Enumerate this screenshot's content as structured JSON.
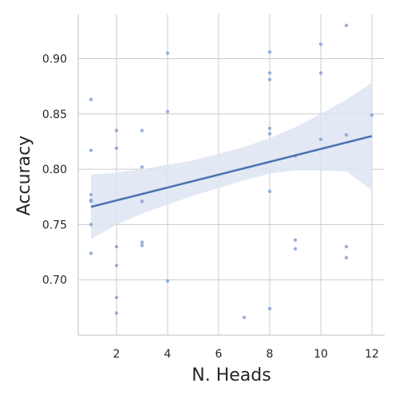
{
  "chart_data": {
    "type": "scatter",
    "title": "",
    "xlabel": "N. Heads",
    "ylabel": "Accuracy",
    "xlim": [
      0.5,
      12.5
    ],
    "ylim": [
      0.65,
      0.94
    ],
    "xticks": [
      2,
      4,
      6,
      8,
      10,
      12
    ],
    "yticks": [
      0.7,
      0.75,
      0.8,
      0.85,
      0.9
    ],
    "xtick_labels": [
      "2",
      "4",
      "6",
      "8",
      "10",
      "12"
    ],
    "ytick_labels": [
      "0.70",
      "0.75",
      "0.80",
      "0.85",
      "0.90"
    ],
    "grid": true,
    "colors": {
      "point": "#7f9fcf",
      "line": "#4c72b0",
      "band": "#dde4f2"
    },
    "points": [
      [
        1,
        0.863
      ],
      [
        1,
        0.817
      ],
      [
        1,
        0.777
      ],
      [
        1,
        0.772
      ],
      [
        1,
        0.771
      ],
      [
        1,
        0.75
      ],
      [
        1,
        0.724
      ],
      [
        2,
        0.835
      ],
      [
        2,
        0.819
      ],
      [
        2,
        0.73
      ],
      [
        2,
        0.713
      ],
      [
        2,
        0.684
      ],
      [
        2,
        0.67
      ],
      [
        3,
        0.835
      ],
      [
        3,
        0.802
      ],
      [
        3,
        0.771
      ],
      [
        3,
        0.734
      ],
      [
        3,
        0.731
      ],
      [
        4,
        0.905
      ],
      [
        4,
        0.852
      ],
      [
        4,
        0.699
      ],
      [
        7,
        0.666
      ],
      [
        8,
        0.906
      ],
      [
        8,
        0.887
      ],
      [
        8,
        0.881
      ],
      [
        8,
        0.837
      ],
      [
        8,
        0.832
      ],
      [
        8,
        0.78
      ],
      [
        8,
        0.674
      ],
      [
        9,
        0.812
      ],
      [
        9,
        0.736
      ],
      [
        9,
        0.728
      ],
      [
        10,
        0.913
      ],
      [
        10,
        0.887
      ],
      [
        10,
        0.827
      ],
      [
        11,
        0.93
      ],
      [
        11,
        0.831
      ],
      [
        11,
        0.73
      ],
      [
        11,
        0.72
      ],
      [
        12,
        0.849
      ]
    ],
    "regression": {
      "x": [
        1,
        12
      ],
      "y": [
        0.766,
        0.83
      ]
    },
    "ci_band": {
      "x": [
        1,
        2,
        3,
        4,
        5,
        6,
        7,
        8,
        9,
        10,
        11,
        12
      ],
      "upper": [
        0.795,
        0.797,
        0.8,
        0.804,
        0.808,
        0.814,
        0.82,
        0.828,
        0.838,
        0.85,
        0.863,
        0.878
      ],
      "lower": [
        0.737,
        0.75,
        0.76,
        0.768,
        0.776,
        0.783,
        0.79,
        0.796,
        0.799,
        0.799,
        0.798,
        0.781
      ]
    }
  }
}
